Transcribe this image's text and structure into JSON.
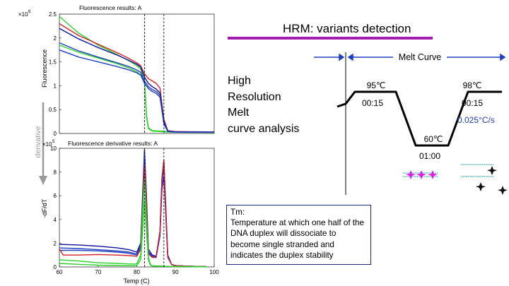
{
  "slide": {
    "title": "HRM: variants detection",
    "method_label": "High\nResolution\nMelt\ncurve analysis",
    "tm_definition": "Tm:\nTemperature at which one half of the DNA duplex will dissociate to become single stranded and indicates the duplex stability"
  },
  "colors": {
    "accent": "#a21caf",
    "blue": "#1f3fbf",
    "red": "#d2232a",
    "green": "#2bd12b",
    "navy": "#1010a0"
  },
  "top_plot": {
    "title": "Fluorescence results: A",
    "ylabel": "Fluorescence",
    "exponent": "×10",
    "exponent_power": "6",
    "yticks": [
      "0",
      "0.5",
      "1",
      "1.5",
      "2",
      "2.5"
    ]
  },
  "bottom_plot": {
    "title": "Fluorescence derivative results: A",
    "ylabel": "-dF/dT",
    "xlabel": "Temp (C)",
    "exponent": "×10",
    "exponent_power": "5",
    "yticks": [
      "0",
      "2",
      "4",
      "6",
      "8",
      "10"
    ],
    "xticks": [
      "60",
      "70",
      "80",
      "90",
      "100"
    ]
  },
  "derivative_arrow_label": "derivative",
  "melt_profile": {
    "header": "Melt Curve",
    "steps": [
      {
        "temp": "95℃",
        "time": "00:15"
      },
      {
        "temp": "60℃",
        "time": "01:00"
      },
      {
        "temp": "98℃",
        "time": "00:15"
      }
    ],
    "ramp_rate": "0.025°C/s"
  },
  "chart_data": [
    {
      "type": "line",
      "title": "Fluorescence results: A",
      "xlabel": "",
      "ylabel": "Fluorescence",
      "xlim": [
        60,
        100
      ],
      "ylim": [
        0,
        2500000
      ],
      "markers": [
        82,
        87
      ],
      "series": [
        {
          "name": "green-1",
          "color": "#2bd12b",
          "x": [
            60,
            65,
            70,
            75,
            78,
            80,
            81,
            82,
            82.5,
            83,
            84,
            86,
            88,
            90,
            100
          ],
          "y": [
            2450000,
            2100000,
            1850000,
            1650000,
            1520000,
            1420000,
            1350000,
            1100000,
            400000,
            120000,
            60000,
            50000,
            40000,
            30000,
            20000
          ]
        },
        {
          "name": "green-2",
          "color": "#2bd12b",
          "x": [
            60,
            65,
            70,
            75,
            78,
            80,
            81,
            82,
            82.5,
            83,
            84,
            86,
            88,
            90,
            100
          ],
          "y": [
            1850000,
            1700000,
            1580000,
            1460000,
            1370000,
            1290000,
            1230000,
            1050000,
            350000,
            100000,
            50000,
            40000,
            30000,
            25000,
            20000
          ]
        },
        {
          "name": "red-1",
          "color": "#d2232a",
          "x": [
            60,
            65,
            70,
            75,
            78,
            80,
            81,
            82,
            83,
            84,
            85,
            86,
            87,
            88,
            90,
            100
          ],
          "y": [
            2300000,
            2050000,
            1870000,
            1690000,
            1570000,
            1480000,
            1420000,
            1250000,
            1150000,
            1100000,
            1050000,
            950000,
            300000,
            60000,
            40000,
            30000
          ]
        },
        {
          "name": "navy-1",
          "color": "#1010a0",
          "x": [
            60,
            65,
            70,
            75,
            78,
            80,
            81,
            82,
            83,
            84,
            85,
            86,
            87,
            88,
            90,
            100
          ],
          "y": [
            2200000,
            1980000,
            1800000,
            1640000,
            1530000,
            1450000,
            1390000,
            1180000,
            1050000,
            980000,
            930000,
            850000,
            250000,
            50000,
            35000,
            30000
          ]
        },
        {
          "name": "blue-1",
          "color": "#1f3fbf",
          "x": [
            60,
            65,
            70,
            75,
            78,
            80,
            81,
            82,
            83,
            84,
            85,
            86,
            87,
            88,
            90,
            100
          ],
          "y": [
            1900000,
            1730000,
            1600000,
            1480000,
            1400000,
            1330000,
            1280000,
            1100000,
            980000,
            920000,
            880000,
            800000,
            220000,
            45000,
            30000,
            25000
          ]
        },
        {
          "name": "blue-2",
          "color": "#1f3fbf",
          "x": [
            60,
            65,
            70,
            75,
            78,
            80,
            81,
            82,
            83,
            84,
            85,
            86,
            87,
            88,
            90,
            100
          ],
          "y": [
            1750000,
            1600000,
            1500000,
            1400000,
            1330000,
            1270000,
            1220000,
            1050000,
            940000,
            880000,
            840000,
            760000,
            200000,
            40000,
            30000,
            25000
          ]
        }
      ]
    },
    {
      "type": "line",
      "title": "Fluorescence derivative results: A",
      "xlabel": "Temp (C)",
      "ylabel": "-dF/dT",
      "xlim": [
        60,
        100
      ],
      "ylim": [
        0,
        1000000
      ],
      "markers": [
        82,
        87
      ],
      "series": [
        {
          "name": "navy-1",
          "color": "#1010a0",
          "x": [
            60,
            65,
            70,
            75,
            78,
            80,
            81,
            81.5,
            82,
            82.5,
            83,
            84,
            85,
            86,
            86.5,
            87,
            87.5,
            88,
            89,
            90,
            95,
            98
          ],
          "y": [
            190000,
            185000,
            175000,
            160000,
            145000,
            125000,
            200000,
            600000,
            990000,
            600000,
            150000,
            100000,
            90000,
            300000,
            750000,
            900000,
            500000,
            100000,
            20000,
            10000,
            5000,
            3000
          ]
        },
        {
          "name": "blue-1",
          "color": "#1f3fbf",
          "x": [
            60,
            65,
            70,
            75,
            78,
            80,
            81,
            81.5,
            82,
            82.5,
            83,
            84,
            85,
            86,
            86.5,
            87,
            87.5,
            88,
            89,
            90,
            95,
            98
          ],
          "y": [
            160000,
            155000,
            145000,
            135000,
            125000,
            110000,
            180000,
            550000,
            950000,
            550000,
            130000,
            90000,
            85000,
            280000,
            700000,
            850000,
            450000,
            90000,
            20000,
            10000,
            5000,
            3000
          ]
        },
        {
          "name": "blue-2",
          "color": "#1f3fbf",
          "x": [
            60,
            65,
            70,
            75,
            78,
            80,
            81,
            81.5,
            82,
            82.5,
            83,
            84,
            85,
            86,
            86.5,
            87,
            87.5,
            88,
            89,
            90,
            95,
            98
          ],
          "y": [
            140000,
            140000,
            135000,
            125000,
            115000,
            100000,
            170000,
            520000,
            900000,
            520000,
            120000,
            85000,
            80000,
            260000,
            650000,
            760000,
            420000,
            80000,
            20000,
            10000,
            5000,
            3000
          ]
        },
        {
          "name": "red-1",
          "color": "#d2232a",
          "x": [
            60,
            61,
            65,
            70,
            75,
            78,
            80,
            81,
            81.5,
            82,
            82.5,
            83,
            84,
            85,
            86,
            86.5,
            87,
            87.5,
            88,
            89,
            90,
            95,
            98
          ],
          "y": [
            150000,
            100000,
            100000,
            105000,
            100000,
            95000,
            90000,
            150000,
            500000,
            860000,
            500000,
            110000,
            80000,
            80000,
            300000,
            750000,
            900000,
            450000,
            80000,
            20000,
            10000,
            5000,
            3000
          ]
        },
        {
          "name": "green-1",
          "color": "#2bd12b",
          "x": [
            60,
            65,
            70,
            75,
            78,
            80,
            81,
            81.5,
            82,
            82.5,
            83,
            83.5,
            84,
            86,
            88,
            90,
            95,
            98
          ],
          "y": [
            60000,
            50000,
            35000,
            30000,
            25000,
            25000,
            100000,
            450000,
            740000,
            400000,
            80000,
            20000,
            10000,
            8000,
            5000,
            4000,
            3000,
            2000
          ]
        },
        {
          "name": "green-2",
          "color": "#2bd12b",
          "x": [
            60,
            65,
            70,
            75,
            78,
            80,
            81,
            81.5,
            82,
            82.5,
            83,
            83.5,
            84,
            86,
            88,
            90,
            95,
            98
          ],
          "y": [
            30000,
            22000,
            15000,
            12000,
            10000,
            12000,
            60000,
            300000,
            560000,
            300000,
            60000,
            15000,
            8000,
            6000,
            4000,
            3000,
            2000,
            1000
          ]
        }
      ]
    }
  ]
}
